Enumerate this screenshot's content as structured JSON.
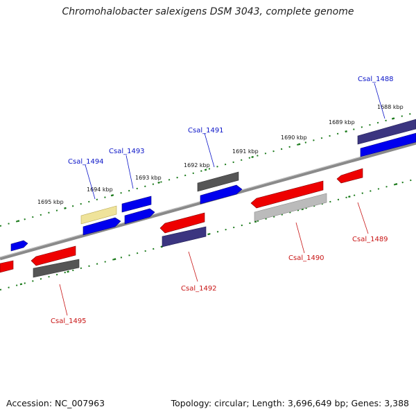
{
  "title": "Chromohalobacter salexigens DSM 3043, complete genome",
  "footer": {
    "accession": "Accession: NC_007963",
    "topology": "Topology: circular; Length: 3,696,649 bp; Genes: 3,388"
  },
  "kbp_ticks": [
    "1695 kbp",
    "1694 kbp",
    "1693 kbp",
    "1692 kbp",
    "1691 kbp",
    "1690 kbp",
    "1689 kbp",
    "1688 kbp"
  ],
  "genes_top": [
    "Csal_1494",
    "Csal_1493",
    "Csal_1491",
    "Csal_1488"
  ],
  "genes_bottom": [
    "Csal_1495",
    "Csal_1492",
    "Csal_1490",
    "Csal_1489"
  ],
  "colors": {
    "forward": "#0000ee",
    "reverse": "#ee0000",
    "dark_gray": "#555555",
    "light_gray": "#bbbbbb",
    "purple": "#3b3580",
    "yellow": "#efe39a",
    "backbone": "#7a7a7a",
    "tick_green": "#1a7a1a"
  }
}
